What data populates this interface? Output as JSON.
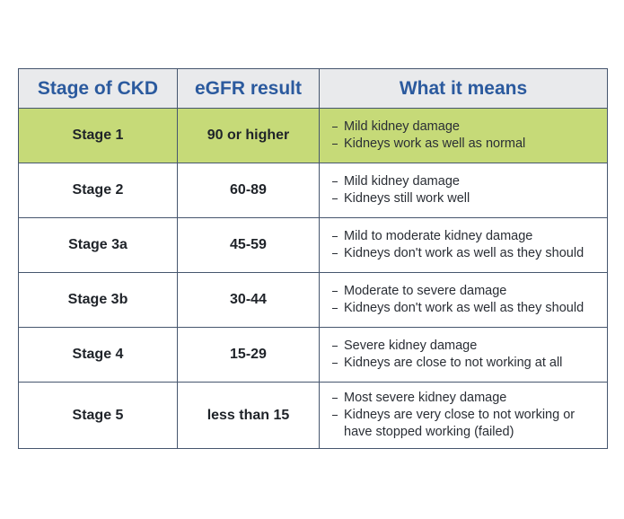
{
  "table": {
    "header": [
      "Stage of CKD",
      "eGFR result",
      "What it means"
    ],
    "rows": [
      [
        "Stage 1",
        "90 or higher",
        [
          "Mild kidney damage",
          "Kidneys work as well as normal"
        ]
      ],
      [
        "Stage 2",
        "60-89",
        [
          "Mild kidney damage",
          "Kidneys still work well"
        ]
      ],
      [
        "Stage 3a",
        "45-59",
        [
          "Mild to moderate kidney damage",
          "Kidneys don't work as well as they should"
        ]
      ],
      [
        "Stage 3b",
        "30-44",
        [
          "Moderate to severe damage",
          "Kidneys don't work as well as they should"
        ]
      ],
      [
        "Stage 4",
        "15-29",
        [
          "Severe kidney damage",
          "Kidneys are close to not working at all"
        ]
      ],
      [
        "Stage 5",
        "less than 15",
        [
          "Most severe kidney damage",
          "Kidneys are very close to not working or have stopped working (failed)"
        ]
      ]
    ]
  }
}
